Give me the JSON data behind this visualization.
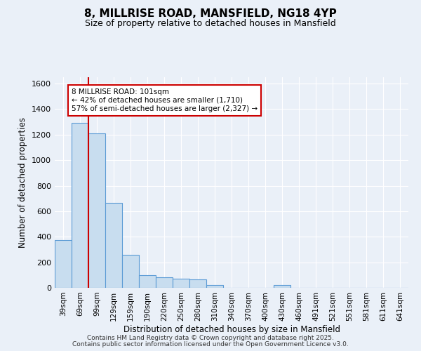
{
  "title": "8, MILLRISE ROAD, MANSFIELD, NG18 4YP",
  "subtitle": "Size of property relative to detached houses in Mansfield",
  "xlabel": "Distribution of detached houses by size in Mansfield",
  "ylabel": "Number of detached properties",
  "categories": [
    "39sqm",
    "69sqm",
    "99sqm",
    "129sqm",
    "159sqm",
    "190sqm",
    "220sqm",
    "250sqm",
    "280sqm",
    "310sqm",
    "340sqm",
    "370sqm",
    "400sqm",
    "430sqm",
    "460sqm",
    "491sqm",
    "521sqm",
    "551sqm",
    "581sqm",
    "611sqm",
    "641sqm"
  ],
  "values": [
    375,
    1290,
    1210,
    665,
    260,
    100,
    80,
    70,
    65,
    20,
    0,
    0,
    0,
    20,
    0,
    0,
    0,
    0,
    0,
    0,
    0
  ],
  "bar_color": "#c8ddef",
  "bar_edge_color": "#5b9bd5",
  "redline_x": 1.5,
  "annotation_text": "8 MILLRISE ROAD: 101sqm\n← 42% of detached houses are smaller (1,710)\n57% of semi-detached houses are larger (2,327) →",
  "annotation_box_color": "#ffffff",
  "annotation_box_edge": "#cc0000",
  "ylim": [
    0,
    1650
  ],
  "yticks": [
    0,
    200,
    400,
    600,
    800,
    1000,
    1200,
    1400,
    1600
  ],
  "bg_color": "#eaf0f8",
  "plot_bg_color": "#eaf0f8",
  "grid_color": "#ffffff",
  "footer1": "Contains HM Land Registry data © Crown copyright and database right 2025.",
  "footer2": "Contains public sector information licensed under the Open Government Licence v3.0."
}
